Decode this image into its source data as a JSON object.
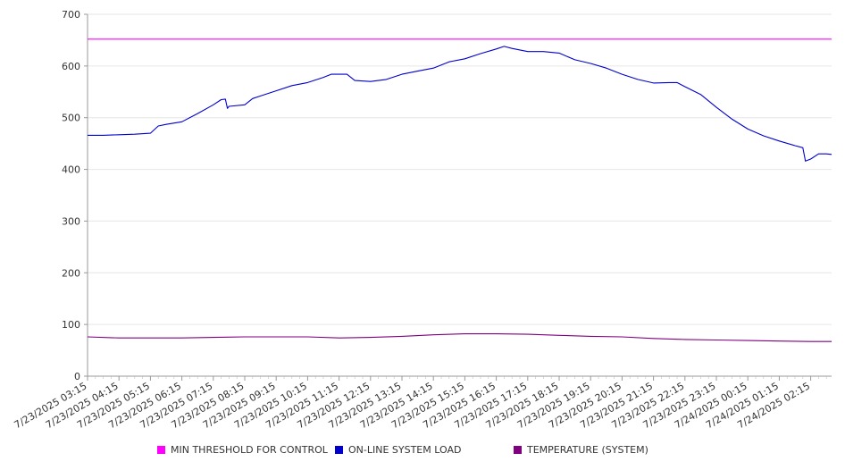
{
  "chart_data": {
    "type": "line",
    "title": "",
    "xlabel": "",
    "ylabel": "",
    "ylim": [
      0,
      700
    ],
    "yticks": [
      0,
      100,
      200,
      300,
      400,
      500,
      600,
      700
    ],
    "grid": true,
    "legend_position": "bottom",
    "x_tick_labels": [
      "7/23/2025 03:15",
      "7/23/2025 04:15",
      "7/23/2025 05:15",
      "7/23/2025 06:15",
      "7/23/2025 07:15",
      "7/23/2025 08:15",
      "7/23/2025 09:15",
      "7/23/2025 10:15",
      "7/23/2025 11:15",
      "7/23/2025 12:15",
      "7/23/2025 13:15",
      "7/23/2025 14:15",
      "7/23/2025 15:15",
      "7/23/2025 16:15",
      "7/23/2025 17:15",
      "7/23/2025 18:15",
      "7/23/2025 19:15",
      "7/23/2025 20:15",
      "7/23/2025 21:15",
      "7/23/2025 22:15",
      "7/23/2025 23:15",
      "7/24/2025 00:15",
      "7/24/2025 01:15",
      "7/24/2025 02:15"
    ],
    "series": [
      {
        "name": "MIN THRESHOLD FOR CONTROL",
        "color": "#ff00ff",
        "points": [
          [
            "7/23/2025 03:15",
            652
          ],
          [
            "7/24/2025 03:15",
            652
          ]
        ]
      },
      {
        "name": "ON-LINE SYSTEM LOAD",
        "color": "#0000cc",
        "points": [
          [
            "7/23/2025 03:15",
            466
          ],
          [
            "7/23/2025 03:45",
            466
          ],
          [
            "7/23/2025 04:15",
            467
          ],
          [
            "7/23/2025 04:45",
            468
          ],
          [
            "7/23/2025 05:15",
            470
          ],
          [
            "7/23/2025 05:30",
            484
          ],
          [
            "7/23/2025 05:45",
            487
          ],
          [
            "7/23/2025 06:15",
            492
          ],
          [
            "7/23/2025 06:45",
            508
          ],
          [
            "7/23/2025 07:15",
            525
          ],
          [
            "7/23/2025 07:30",
            535
          ],
          [
            "7/23/2025 07:38",
            536
          ],
          [
            "7/23/2025 07:42",
            518
          ],
          [
            "7/23/2025 07:45",
            522
          ],
          [
            "7/23/2025 08:15",
            525
          ],
          [
            "7/23/2025 08:30",
            537
          ],
          [
            "7/23/2025 08:45",
            542
          ],
          [
            "7/23/2025 09:15",
            552
          ],
          [
            "7/23/2025 09:45",
            562
          ],
          [
            "7/23/2025 10:15",
            568
          ],
          [
            "7/23/2025 10:45",
            578
          ],
          [
            "7/23/2025 11:00",
            584
          ],
          [
            "7/23/2025 11:30",
            584
          ],
          [
            "7/23/2025 11:45",
            572
          ],
          [
            "7/23/2025 12:15",
            570
          ],
          [
            "7/23/2025 12:45",
            574
          ],
          [
            "7/23/2025 13:15",
            584
          ],
          [
            "7/23/2025 13:45",
            590
          ],
          [
            "7/23/2025 14:15",
            596
          ],
          [
            "7/23/2025 14:45",
            608
          ],
          [
            "7/23/2025 15:15",
            614
          ],
          [
            "7/23/2025 15:45",
            624
          ],
          [
            "7/23/2025 16:15",
            633
          ],
          [
            "7/23/2025 16:30",
            638
          ],
          [
            "7/23/2025 16:45",
            634
          ],
          [
            "7/23/2025 17:15",
            628
          ],
          [
            "7/23/2025 17:45",
            628
          ],
          [
            "7/23/2025 18:15",
            625
          ],
          [
            "7/23/2025 18:45",
            612
          ],
          [
            "7/23/2025 19:15",
            605
          ],
          [
            "7/23/2025 19:45",
            596
          ],
          [
            "7/23/2025 20:15",
            584
          ],
          [
            "7/23/2025 20:45",
            574
          ],
          [
            "7/23/2025 21:15",
            567
          ],
          [
            "7/23/2025 21:45",
            568
          ],
          [
            "7/23/2025 22:00",
            568
          ],
          [
            "7/23/2025 22:15",
            560
          ],
          [
            "7/23/2025 22:45",
            545
          ],
          [
            "7/23/2025 23:15",
            520
          ],
          [
            "7/23/2025 23:45",
            497
          ],
          [
            "7/24/2025 00:15",
            478
          ],
          [
            "7/24/2025 00:45",
            465
          ],
          [
            "7/24/2025 01:15",
            455
          ],
          [
            "7/24/2025 01:45",
            446
          ],
          [
            "7/24/2025 02:00",
            442
          ],
          [
            "7/24/2025 02:05",
            416
          ],
          [
            "7/24/2025 02:15",
            420
          ],
          [
            "7/24/2025 02:30",
            430
          ],
          [
            "7/24/2025 02:45",
            430
          ],
          [
            "7/24/2025 03:00",
            429
          ]
        ]
      },
      {
        "name": "TEMPERATURE (SYSTEM)",
        "color": "#800080",
        "points": [
          [
            "7/23/2025 03:15",
            76
          ],
          [
            "7/23/2025 04:15",
            74
          ],
          [
            "7/23/2025 06:15",
            74
          ],
          [
            "7/23/2025 07:15",
            75
          ],
          [
            "7/23/2025 08:15",
            76
          ],
          [
            "7/23/2025 10:15",
            76
          ],
          [
            "7/23/2025 11:15",
            74
          ],
          [
            "7/23/2025 12:15",
            75
          ],
          [
            "7/23/2025 13:15",
            77
          ],
          [
            "7/23/2025 14:15",
            80
          ],
          [
            "7/23/2025 15:15",
            82
          ],
          [
            "7/23/2025 16:15",
            82
          ],
          [
            "7/23/2025 17:15",
            81
          ],
          [
            "7/23/2025 18:15",
            79
          ],
          [
            "7/23/2025 19:15",
            77
          ],
          [
            "7/23/2025 20:15",
            76
          ],
          [
            "7/23/2025 21:15",
            73
          ],
          [
            "7/23/2025 22:15",
            71
          ],
          [
            "7/23/2025 23:15",
            70
          ],
          [
            "7/24/2025 00:15",
            69
          ],
          [
            "7/24/2025 01:15",
            68
          ],
          [
            "7/24/2025 02:15",
            67
          ],
          [
            "7/24/2025 03:00",
            67
          ]
        ]
      }
    ]
  }
}
